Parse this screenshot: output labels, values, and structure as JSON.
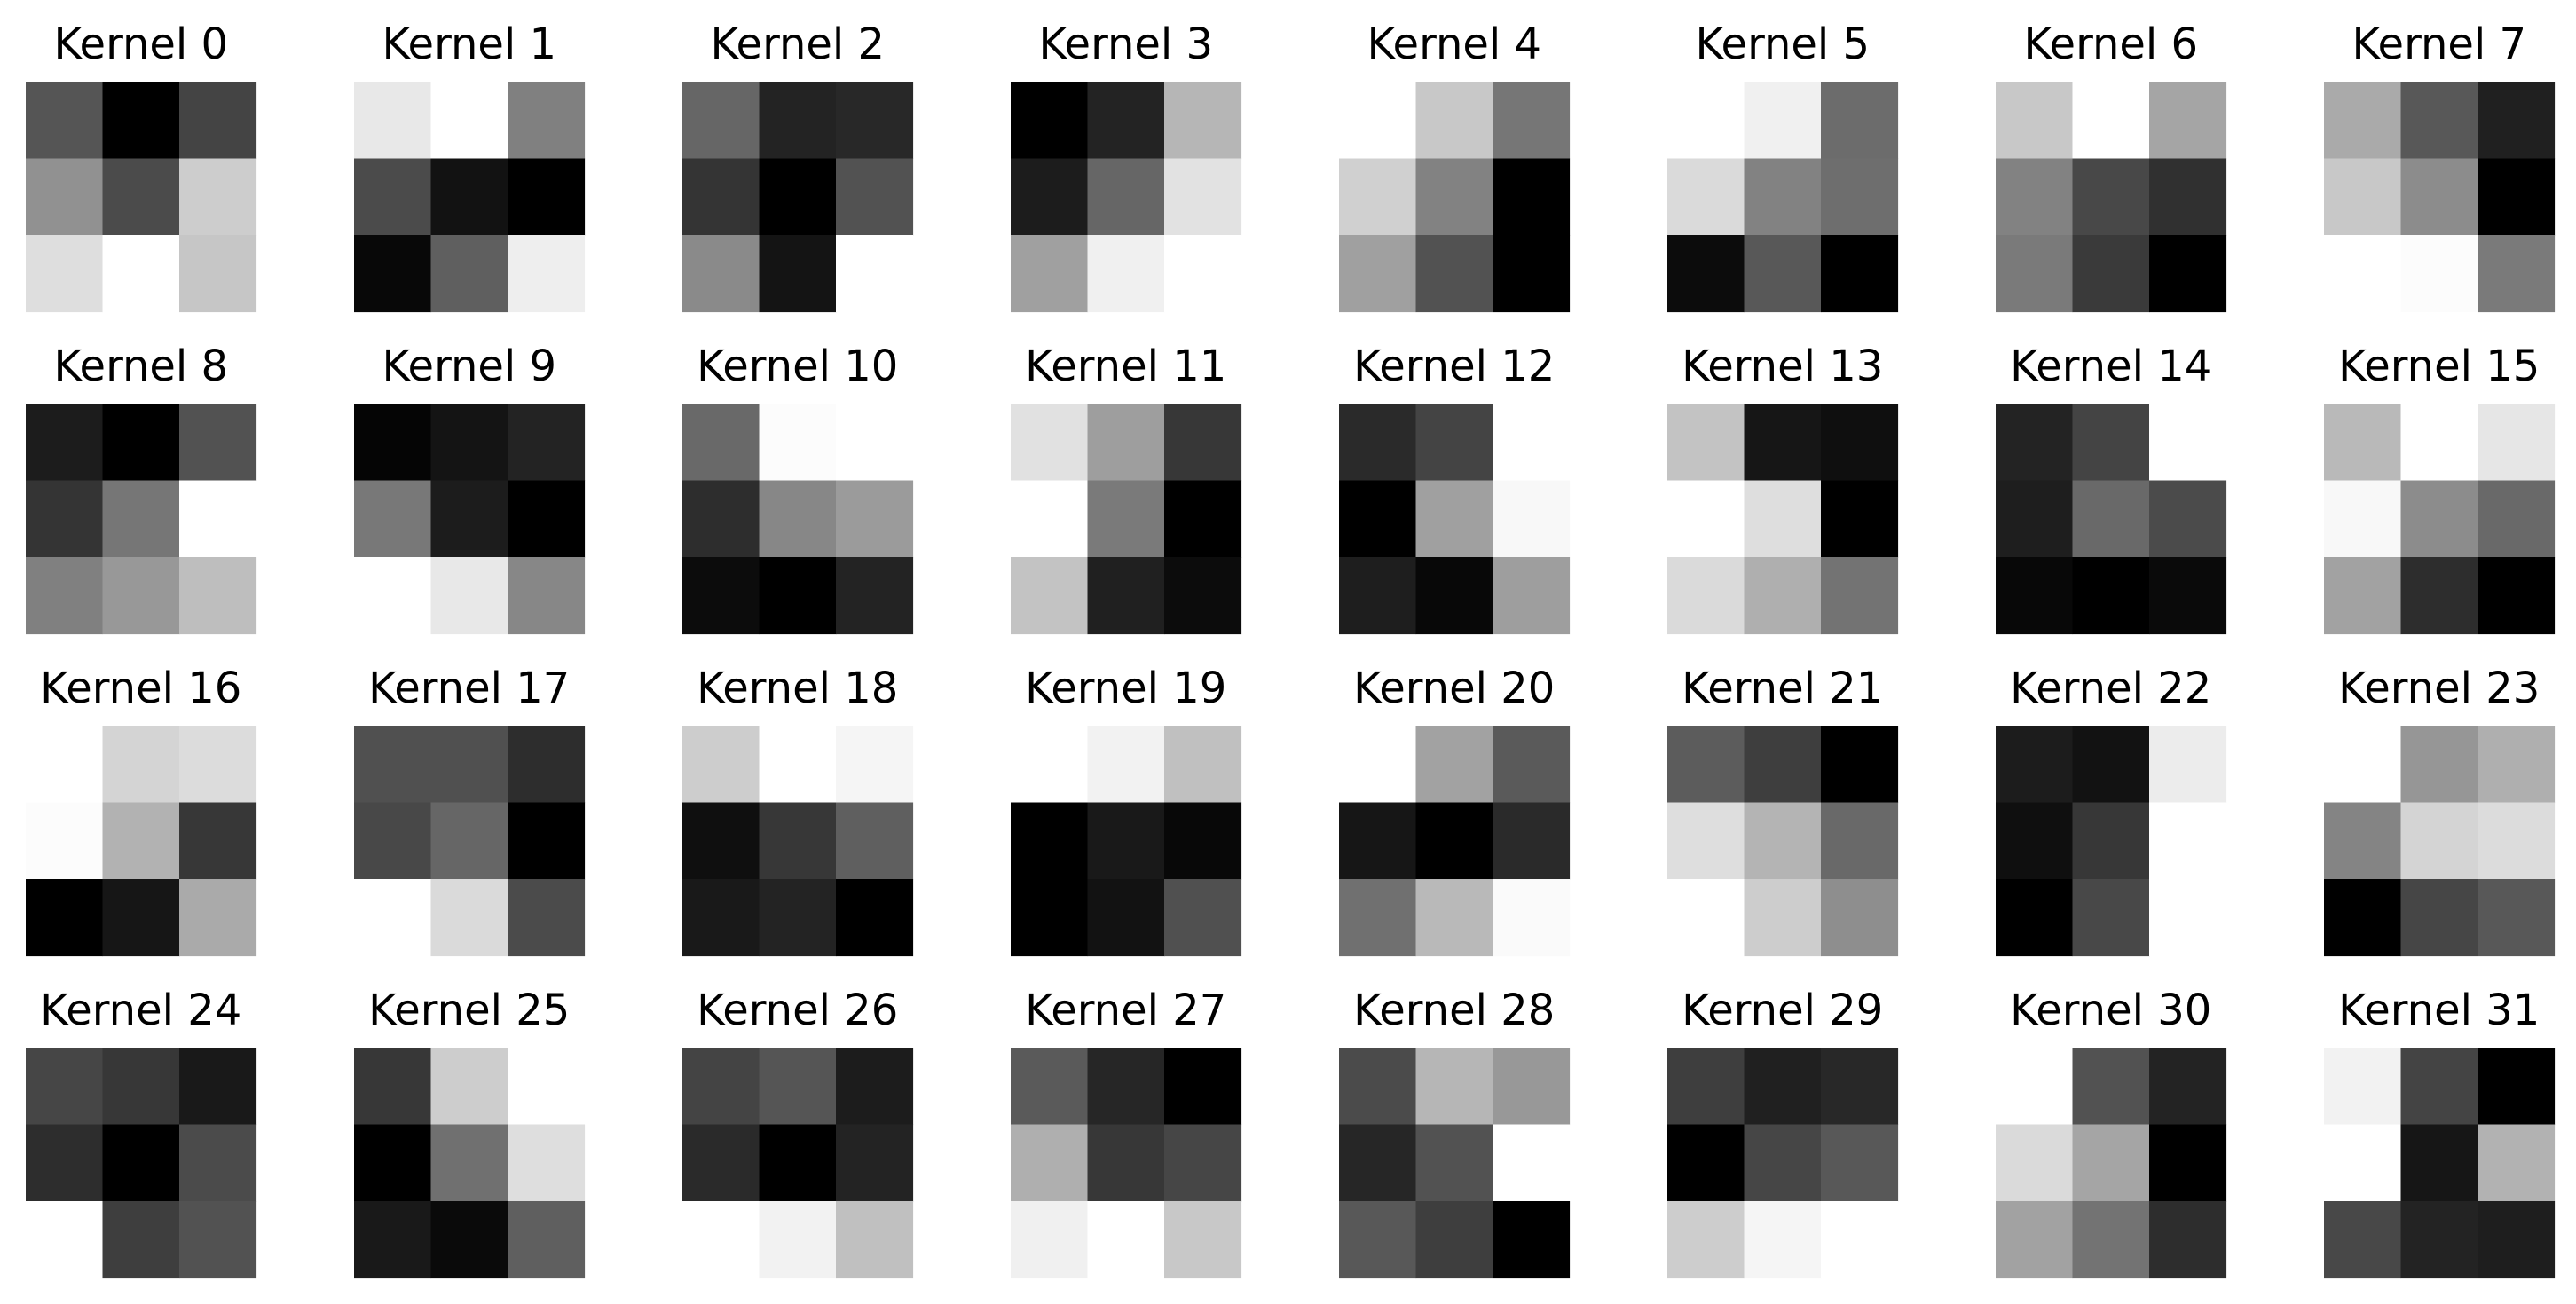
{
  "chart_data": {
    "type": "heatmap",
    "colormap": "grayscale",
    "color_scale": "0 = black, 255 = white",
    "grid": false,
    "axes_visible": false,
    "kernels": [
      {
        "title": "Kernel 0",
        "cells": [
          [
            85,
            0,
            68
          ],
          [
            145,
            75,
            205
          ],
          [
            222,
            255,
            198
          ]
        ]
      },
      {
        "title": "Kernel 1",
        "cells": [
          [
            232,
            255,
            128
          ],
          [
            75,
            18,
            0
          ],
          [
            8,
            95,
            238
          ]
        ]
      },
      {
        "title": "Kernel 2",
        "cells": [
          [
            102,
            35,
            40
          ],
          [
            52,
            0,
            82
          ],
          [
            138,
            20,
            255
          ]
        ]
      },
      {
        "title": "Kernel 3",
        "cells": [
          [
            0,
            35,
            182
          ],
          [
            28,
            102,
            226
          ],
          [
            160,
            240,
            255
          ]
        ]
      },
      {
        "title": "Kernel 4",
        "cells": [
          [
            255,
            200,
            118
          ],
          [
            208,
            130,
            0
          ],
          [
            160,
            82,
            0
          ]
        ]
      },
      {
        "title": "Kernel 5",
        "cells": [
          [
            255,
            240,
            108
          ],
          [
            218,
            130,
            110
          ],
          [
            12,
            88,
            0
          ]
        ]
      },
      {
        "title": "Kernel 6",
        "cells": [
          [
            200,
            255,
            165
          ],
          [
            130,
            72,
            48
          ],
          [
            122,
            58,
            0
          ]
        ]
      },
      {
        "title": "Kernel 7",
        "cells": [
          [
            170,
            88,
            32
          ],
          [
            200,
            140,
            0
          ],
          [
            255,
            252,
            122
          ]
        ]
      },
      {
        "title": "Kernel 8",
        "cells": [
          [
            28,
            0,
            82
          ],
          [
            52,
            118,
            255
          ],
          [
            128,
            152,
            190
          ]
        ]
      },
      {
        "title": "Kernel 9",
        "cells": [
          [
            5,
            20,
            35
          ],
          [
            120,
            28,
            0
          ],
          [
            255,
            232,
            135
          ]
        ]
      },
      {
        "title": "Kernel 10",
        "cells": [
          [
            105,
            252,
            255
          ],
          [
            45,
            135,
            155
          ],
          [
            12,
            0,
            35
          ]
        ]
      },
      {
        "title": "Kernel 11",
        "cells": [
          [
            225,
            158,
            55
          ],
          [
            255,
            122,
            0
          ],
          [
            195,
            32,
            12
          ]
        ]
      },
      {
        "title": "Kernel 12",
        "cells": [
          [
            42,
            68,
            255
          ],
          [
            0,
            160,
            248
          ],
          [
            30,
            8,
            158
          ]
        ]
      },
      {
        "title": "Kernel 13",
        "cells": [
          [
            195,
            22,
            15
          ],
          [
            255,
            222,
            0
          ],
          [
            218,
            175,
            115
          ]
        ]
      },
      {
        "title": "Kernel 14",
        "cells": [
          [
            35,
            68,
            255
          ],
          [
            30,
            105,
            75
          ],
          [
            8,
            0,
            10
          ]
        ]
      },
      {
        "title": "Kernel 15",
        "cells": [
          [
            185,
            255,
            230
          ],
          [
            248,
            140,
            105
          ],
          [
            162,
            45,
            0
          ]
        ]
      },
      {
        "title": "Kernel 16",
        "cells": [
          [
            255,
            212,
            220
          ],
          [
            252,
            178,
            55
          ],
          [
            0,
            22,
            170
          ]
        ]
      },
      {
        "title": "Kernel 17",
        "cells": [
          [
            80,
            80,
            45
          ],
          [
            72,
            102,
            0
          ],
          [
            255,
            218,
            75
          ]
        ]
      },
      {
        "title": "Kernel 18",
        "cells": [
          [
            205,
            255,
            245
          ],
          [
            15,
            55,
            95
          ],
          [
            25,
            35,
            0
          ]
        ]
      },
      {
        "title": "Kernel 19",
        "cells": [
          [
            255,
            242,
            192
          ],
          [
            0,
            25,
            8
          ],
          [
            0,
            18,
            80
          ]
        ]
      },
      {
        "title": "Kernel 20",
        "cells": [
          [
            255,
            162,
            90
          ],
          [
            22,
            0,
            42
          ],
          [
            112,
            185,
            250
          ]
        ]
      },
      {
        "title": "Kernel 21",
        "cells": [
          [
            92,
            62,
            0
          ],
          [
            222,
            180,
            105
          ],
          [
            255,
            205,
            142
          ]
        ]
      },
      {
        "title": "Kernel 22",
        "cells": [
          [
            28,
            18,
            236
          ],
          [
            15,
            55,
            255
          ],
          [
            0,
            72,
            255
          ]
        ]
      },
      {
        "title": "Kernel 23",
        "cells": [
          [
            255,
            150,
            175
          ],
          [
            132,
            212,
            220
          ],
          [
            0,
            70,
            88
          ]
        ]
      },
      {
        "title": "Kernel 24",
        "cells": [
          [
            70,
            55,
            25
          ],
          [
            45,
            0,
            75
          ],
          [
            255,
            62,
            82
          ]
        ]
      },
      {
        "title": "Kernel 25",
        "cells": [
          [
            55,
            205,
            255
          ],
          [
            0,
            112,
            222
          ],
          [
            25,
            10,
            95
          ]
        ]
      },
      {
        "title": "Kernel 26",
        "cells": [
          [
            68,
            85,
            28
          ],
          [
            42,
            0,
            35
          ],
          [
            255,
            242,
            192
          ]
        ]
      },
      {
        "title": "Kernel 27",
        "cells": [
          [
            90,
            38,
            0
          ],
          [
            175,
            55,
            70
          ],
          [
            240,
            255,
            200
          ]
        ]
      },
      {
        "title": "Kernel 28",
        "cells": [
          [
            75,
            182,
            152
          ],
          [
            38,
            82,
            255
          ],
          [
            88,
            62,
            0
          ]
        ]
      },
      {
        "title": "Kernel 29",
        "cells": [
          [
            62,
            32,
            40
          ],
          [
            0,
            70,
            88
          ],
          [
            205,
            245,
            255
          ]
        ]
      },
      {
        "title": "Kernel 30",
        "cells": [
          [
            255,
            82,
            35
          ],
          [
            218,
            165,
            0
          ],
          [
            162,
            115,
            45
          ]
        ]
      },
      {
        "title": "Kernel 31",
        "cells": [
          [
            242,
            68,
            0
          ],
          [
            255,
            22,
            178
          ],
          [
            72,
            35,
            30
          ]
        ]
      }
    ]
  }
}
